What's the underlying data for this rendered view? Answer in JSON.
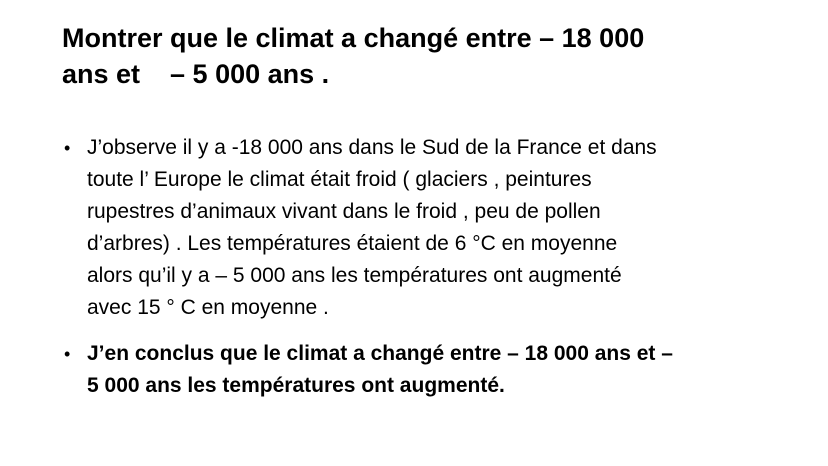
{
  "slide": {
    "background_color": "#ffffff",
    "text_color": "#000000",
    "bullet_char": "•",
    "title": "Montrer que le climat a changé entre – 18 000\nans et    – 5 000 ans .",
    "bullets": [
      {
        "style": "normal",
        "text": "J’observe il y a -18 000 ans dans le Sud de la France et dans\ntoute l’ Europe le climat était froid ( glaciers , peintures\nrupestres d’animaux vivant dans le froid , peu de pollen\nd’arbres) . Les températures étaient de 6 °C en moyenne\nalors qu’il y a – 5 000 ans les températures ont augmenté\navec 15 ° C en moyenne ."
      },
      {
        "style": "bold",
        "text": "J’en conclus que le climat a changé entre – 18 000 ans et –\n5 000 ans les températures ont augmenté."
      }
    ]
  }
}
